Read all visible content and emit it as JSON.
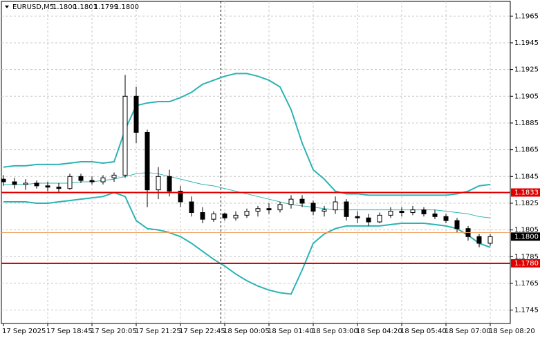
{
  "chart_data": {
    "type": "candlestick",
    "title": "EURUSD,M5",
    "header_values": [
      {
        "value": 1.18,
        "label": "1.1800"
      },
      {
        "value": 1.1801,
        "label": "1.1801"
      },
      {
        "value": 1.1799,
        "label": "1.1799"
      },
      {
        "value": 1.18,
        "label": "1.1800"
      }
    ],
    "categories": [
      "17 Sep 2025",
      null,
      null,
      null,
      "17 Sep 18:45",
      null,
      null,
      null,
      "17 Sep 20:05",
      null,
      null,
      null,
      "17 Sep 21:25",
      null,
      null,
      null,
      "17 Sep 22:45",
      null,
      null,
      null,
      "18 Sep 00:05",
      null,
      null,
      null,
      "18 Sep 01:40",
      null,
      null,
      null,
      "18 Sep 03:00",
      null,
      null,
      null,
      "18 Sep 04:20",
      null,
      null,
      null,
      "18 Sep 05:40",
      null,
      null,
      null,
      "18 Sep 07:00",
      null,
      null,
      null,
      "18 Sep 08:20"
    ],
    "open": [
      1.1843,
      1.1841,
      1.1839,
      1.184,
      1.1838,
      1.1837,
      1.1836,
      1.1845,
      1.1842,
      1.1841,
      1.1844,
      1.1846,
      1.1905,
      1.1878,
      1.1835,
      1.1845,
      1.1834,
      1.1826,
      1.1818,
      1.1813,
      1.1817,
      1.1814,
      1.1816,
      1.1819,
      1.1821,
      1.182,
      1.1824,
      1.1828,
      1.1825,
      1.1819,
      1.182,
      1.1826,
      1.1815,
      1.1814,
      1.1811,
      1.1816,
      1.1819,
      1.1818,
      1.182,
      1.1817,
      1.1815,
      1.1812,
      1.1806,
      1.18,
      1.1795
    ],
    "high": [
      1.1846,
      1.1844,
      1.1843,
      1.1842,
      1.1841,
      1.184,
      1.1847,
      1.1847,
      1.1845,
      1.1846,
      1.1848,
      1.1921,
      1.1912,
      1.188,
      1.1852,
      1.185,
      1.1838,
      1.183,
      1.1822,
      1.1819,
      1.1818,
      1.1819,
      1.1821,
      1.1823,
      1.1825,
      1.1826,
      1.1831,
      1.1831,
      1.1827,
      1.1823,
      1.183,
      1.1828,
      1.1819,
      1.1817,
      1.1818,
      1.1822,
      1.1822,
      1.1823,
      1.1822,
      1.182,
      1.1817,
      1.1814,
      1.1808,
      1.1802,
      1.1802
    ],
    "low": [
      1.1838,
      1.1836,
      1.1835,
      1.1836,
      1.1834,
      1.1833,
      1.1835,
      1.184,
      1.1839,
      1.1839,
      1.1841,
      1.1844,
      1.187,
      1.1822,
      1.1828,
      1.183,
      1.1822,
      1.1815,
      1.181,
      1.1811,
      1.1812,
      1.1812,
      1.1814,
      1.1815,
      1.1817,
      1.1818,
      1.1821,
      1.1822,
      1.1816,
      1.1815,
      1.1817,
      1.1812,
      1.181,
      1.1808,
      1.181,
      1.1814,
      1.1815,
      1.1816,
      1.1815,
      1.1813,
      1.181,
      1.1803,
      1.1797,
      1.1792,
      1.1793
    ],
    "close": [
      1.1841,
      1.1839,
      1.184,
      1.1838,
      1.1837,
      1.1836,
      1.1845,
      1.1842,
      1.1841,
      1.1844,
      1.1846,
      1.1905,
      1.1878,
      1.1835,
      1.1845,
      1.1834,
      1.1826,
      1.1818,
      1.1813,
      1.1817,
      1.1814,
      1.1816,
      1.1819,
      1.1821,
      1.182,
      1.1824,
      1.1828,
      1.1825,
      1.1819,
      1.182,
      1.1826,
      1.1815,
      1.1814,
      1.1811,
      1.1816,
      1.1819,
      1.1818,
      1.182,
      1.1817,
      1.1815,
      1.1812,
      1.1806,
      1.18,
      1.1795,
      1.18
    ],
    "candle_color": "#000000",
    "bands": [
      {
        "color": "#2bb3b3",
        "width": 2,
        "values": [
          1.1852,
          1.1853,
          1.1853,
          1.1854,
          1.1854,
          1.1854,
          1.1855,
          1.1856,
          1.1856,
          1.1855,
          1.1856,
          1.188,
          1.1898,
          1.19,
          1.1901,
          1.1901,
          1.1904,
          1.1908,
          1.1914,
          1.1917,
          1.192,
          1.1922,
          1.1922,
          1.192,
          1.1917,
          1.1912,
          1.1895,
          1.187,
          1.185,
          1.1843,
          1.1834,
          1.1832,
          1.1832,
          1.1831,
          1.1831,
          1.1831,
          1.1831,
          1.1831,
          1.1831,
          1.1831,
          1.1831,
          1.1832,
          1.1834,
          1.1838,
          1.1839
        ]
      },
      {
        "color": "#2bb3b3",
        "width": 1,
        "values": [
          1.1839,
          1.1839,
          1.1839,
          1.184,
          1.184,
          1.184,
          1.184,
          1.1841,
          1.1841,
          1.1842,
          1.1843,
          1.1845,
          1.1847,
          1.1848,
          1.1847,
          1.1845,
          1.1843,
          1.1841,
          1.1839,
          1.1838,
          1.1836,
          1.1834,
          1.1832,
          1.183,
          1.1828,
          1.1826,
          1.1824,
          1.1823,
          1.1822,
          1.1821,
          1.182,
          1.182,
          1.182,
          1.182,
          1.182,
          1.182,
          1.182,
          1.182,
          1.182,
          1.182,
          1.1819,
          1.1818,
          1.1817,
          1.1815,
          1.1814
        ]
      },
      {
        "color": "#2bb3b3",
        "width": 2,
        "values": [
          1.1826,
          1.1826,
          1.1826,
          1.1825,
          1.1825,
          1.1826,
          1.1827,
          1.1828,
          1.1829,
          1.183,
          1.1833,
          1.183,
          1.1812,
          1.1806,
          1.1805,
          1.1803,
          1.18,
          1.1795,
          1.1789,
          1.1783,
          1.1778,
          1.1772,
          1.1767,
          1.1763,
          1.176,
          1.1758,
          1.1757,
          1.1775,
          1.1795,
          1.1802,
          1.1806,
          1.1808,
          1.1808,
          1.1808,
          1.1808,
          1.1809,
          1.181,
          1.181,
          1.181,
          1.1809,
          1.1808,
          1.1806,
          1.1801,
          1.1795,
          1.1792
        ]
      }
    ],
    "levels": [
      {
        "value": 1.1833,
        "label": "1.1833",
        "color": "#e00000"
      },
      {
        "value": 1.178,
        "label": "1.1780",
        "color": "#e00000"
      },
      {
        "value": 1.1803,
        "color": "#f0a060"
      },
      {
        "value": 1.18,
        "label": "1.1800",
        "color": "#000000"
      }
    ],
    "ylim": [
      1.1735,
      1.1976
    ],
    "yticks": [
      1.1965,
      1.1945,
      1.1925,
      1.1905,
      1.1885,
      1.1865,
      1.1845,
      1.1825,
      1.1805,
      1.1785,
      1.1765,
      1.1745
    ],
    "grid": true
  }
}
